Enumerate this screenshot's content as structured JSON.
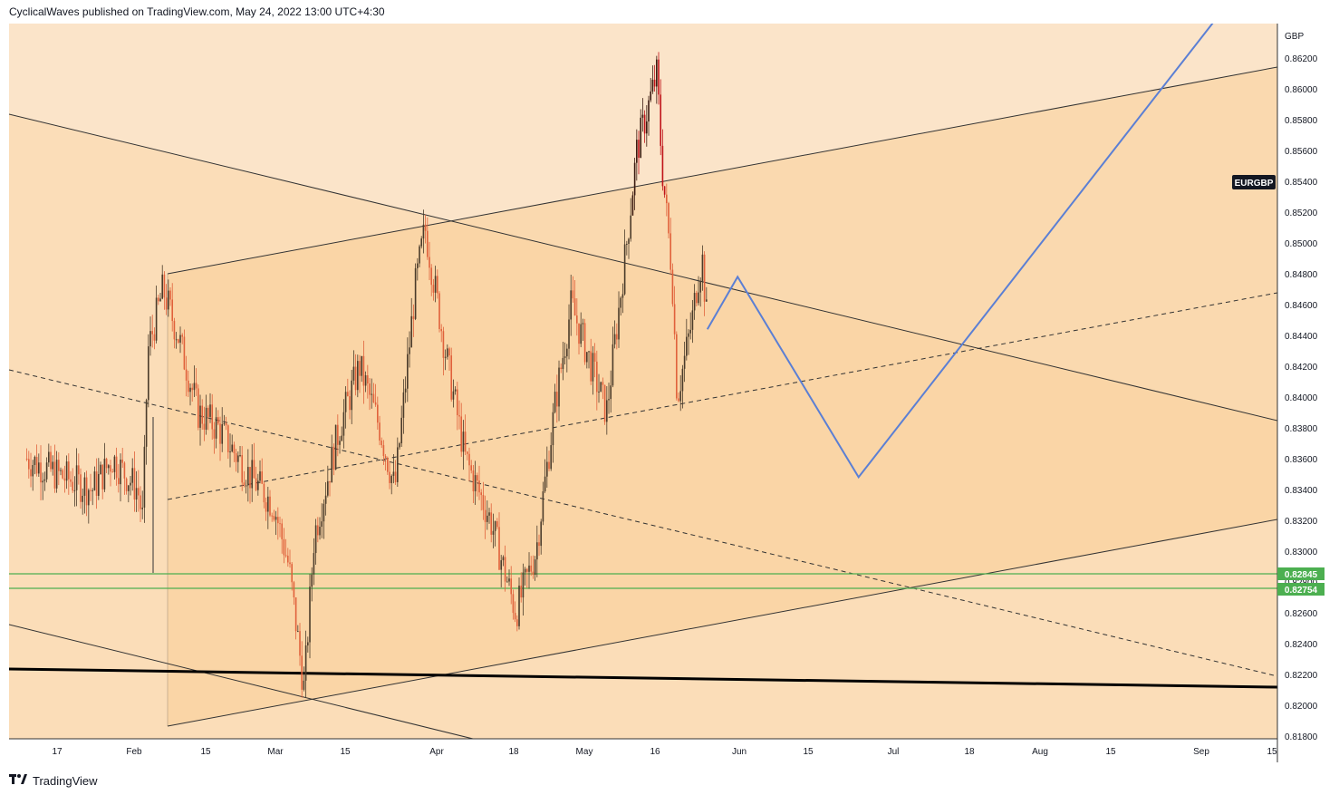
{
  "header": {
    "published_text": "CyclicalWaves published on TradingView.com, May 24, 2022 13:00 UTC+4:30"
  },
  "footer": {
    "logo_icon": "tradingview-logo-icon",
    "brand": "TradingView"
  },
  "symbol_label": "EURGBP",
  "currency_label": "GBP",
  "level_labels": [
    "0.82845",
    "0.82754"
  ],
  "colors": {
    "background_outer": "#fbe4c9",
    "channel_fill": "#fbd6a6",
    "candle_up": "#4a3b2a",
    "candle_down": "#e0613b",
    "candle_peak": "#c0141a",
    "projection": "#5b7fd4",
    "support_line": "#4caf50",
    "trend_black": "#000000"
  },
  "chart_data": {
    "type": "line",
    "title": "",
    "instrument": "EURGBP",
    "currency": "GBP",
    "y_ticks": [
      "0.86200",
      "0.86000",
      "0.85800",
      "0.85600",
      "0.85400",
      "0.85200",
      "0.85000",
      "0.84800",
      "0.84600",
      "0.84400",
      "0.84200",
      "0.84000",
      "0.83800",
      "0.83600",
      "0.83400",
      "0.83200",
      "0.83000",
      "0.82800",
      "0.82600",
      "0.82400",
      "0.82200",
      "0.82000",
      "0.81800"
    ],
    "x_ticks": [
      "17",
      "Feb",
      "15",
      "Mar",
      "15",
      "Apr",
      "18",
      "May",
      "16",
      "Jun",
      "15",
      "Jul",
      "18",
      "Aug",
      "15",
      "Sep",
      "15"
    ],
    "ylim": [
      0.8178,
      0.864
    ],
    "grid": false,
    "series": [
      {
        "name": "EURGBP",
        "approx_close_path": [
          [
            "2022-01-11",
            0.836
          ],
          [
            "2022-01-17",
            0.835
          ],
          [
            "2022-01-24",
            0.834
          ],
          [
            "2022-01-28",
            0.836
          ],
          [
            "2022-02-02",
            0.834
          ],
          [
            "2022-02-03",
            0.832
          ],
          [
            "2022-02-04",
            0.843
          ],
          [
            "2022-02-07",
            0.847
          ],
          [
            "2022-02-10",
            0.844
          ],
          [
            "2022-02-14",
            0.839
          ],
          [
            "2022-02-18",
            0.838
          ],
          [
            "2022-02-24",
            0.835
          ],
          [
            "2022-03-01",
            0.833
          ],
          [
            "2022-03-04",
            0.829
          ],
          [
            "2022-03-07",
            0.821
          ],
          [
            "2022-03-09",
            0.831
          ],
          [
            "2022-03-14",
            0.838
          ],
          [
            "2022-03-18",
            0.842
          ],
          [
            "2022-03-22",
            0.838
          ],
          [
            "2022-03-25",
            0.834
          ],
          [
            "2022-03-29",
            0.847
          ],
          [
            "2022-03-31",
            0.851
          ],
          [
            "2022-04-04",
            0.843
          ],
          [
            "2022-04-08",
            0.836
          ],
          [
            "2022-04-13",
            0.832
          ],
          [
            "2022-04-18",
            0.826
          ],
          [
            "2022-04-22",
            0.83
          ],
          [
            "2022-04-26",
            0.84
          ],
          [
            "2022-04-29",
            0.846
          ],
          [
            "2022-05-04",
            0.841
          ],
          [
            "2022-05-06",
            0.839
          ],
          [
            "2022-05-10",
            0.85
          ],
          [
            "2022-05-12",
            0.856
          ],
          [
            "2022-05-16",
            0.861
          ],
          [
            "2022-05-17",
            0.855
          ],
          [
            "2022-05-19",
            0.848
          ],
          [
            "2022-05-20",
            0.84
          ],
          [
            "2022-05-23",
            0.845
          ],
          [
            "2022-05-24",
            0.8475
          ],
          [
            "2022-05-25",
            0.849
          ],
          [
            "2022-05-26",
            0.8445
          ]
        ]
      },
      {
        "name": "Projection",
        "points": [
          [
            "2022-05-26",
            0.8444
          ],
          [
            "2022-06-01",
            0.8478
          ],
          [
            "2022-06-25",
            0.8348
          ],
          [
            "2022-09-05",
            0.865
          ]
        ]
      }
    ],
    "horizontal_levels": [
      0.82845,
      0.82754
    ],
    "legend": "none"
  }
}
